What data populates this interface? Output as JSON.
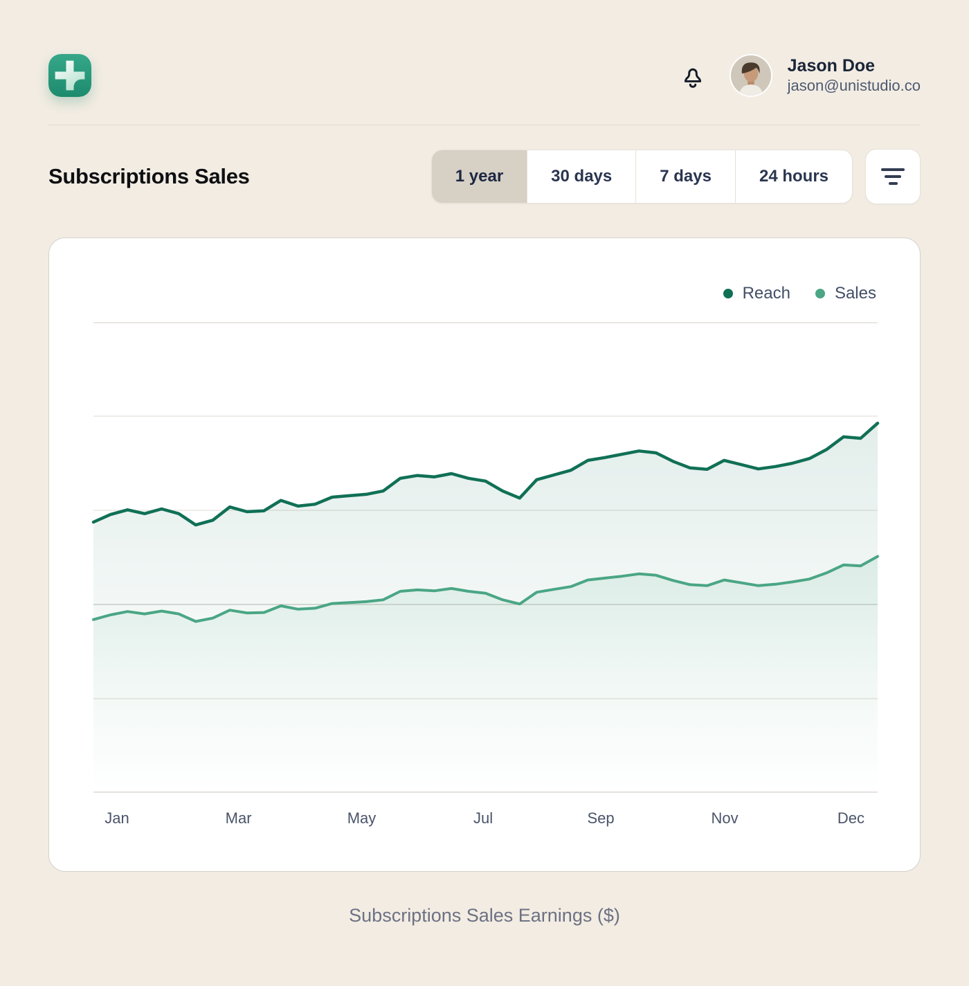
{
  "header": {
    "logo_icon": "plus-app-logo-icon",
    "logo_color": "#2a9b7d",
    "notifications_icon": "bell-icon",
    "user": {
      "name": "Jason Doe",
      "email": "jason@unistudio.co"
    }
  },
  "page": {
    "title": "Subscriptions Sales",
    "caption": "Subscriptions Sales Earnings ($)"
  },
  "range_tabs": [
    {
      "label": "1 year",
      "selected": true
    },
    {
      "label": "30 days",
      "selected": false
    },
    {
      "label": "7 days",
      "selected": false
    },
    {
      "label": "24 hours",
      "selected": false
    }
  ],
  "filter_button": {
    "icon": "filter-lines-icon"
  },
  "chart_data": {
    "type": "area",
    "title": "Subscriptions Sales",
    "xlabel": "",
    "ylabel": "Subscriptions Sales Earnings ($)",
    "ylim": [
      0,
      100
    ],
    "gridline_values": [
      100,
      80,
      60,
      40,
      20,
      0
    ],
    "grid": true,
    "legend_position": "top-right",
    "x_ticks": [
      {
        "label": "Jan",
        "pct": 3.0
      },
      {
        "label": "Mar",
        "pct": 18.5
      },
      {
        "label": "May",
        "pct": 34.2
      },
      {
        "label": "Jul",
        "pct": 49.7
      },
      {
        "label": "Sep",
        "pct": 64.7
      },
      {
        "label": "Nov",
        "pct": 80.5
      },
      {
        "label": "Dec",
        "pct": 96.6
      }
    ],
    "series": [
      {
        "name": "Reach",
        "color": "#107055",
        "values": [
          57.5,
          59.1,
          60.1,
          59.3,
          60.3,
          59.3,
          56.9,
          57.9,
          60.7,
          59.7,
          59.9,
          62.1,
          60.9,
          61.3,
          62.8,
          63.1,
          63.4,
          64.1,
          66.8,
          67.4,
          67.1,
          67.8,
          66.8,
          66.2,
          64.1,
          62.6,
          66.5,
          67.5,
          68.5,
          70.6,
          71.2,
          71.9,
          72.6,
          72.2,
          70.4,
          69.0,
          68.7,
          70.6,
          69.7,
          68.8,
          69.3,
          70.0,
          71.0,
          72.9,
          75.6,
          75.3,
          78.5
        ]
      },
      {
        "name": "Sales",
        "color": "#4aa685",
        "values": [
          36.8,
          37.8,
          38.5,
          38.0,
          38.6,
          38.0,
          36.4,
          37.1,
          38.8,
          38.2,
          38.3,
          39.7,
          39.0,
          39.2,
          40.2,
          40.4,
          40.6,
          41.0,
          42.8,
          43.1,
          42.9,
          43.4,
          42.8,
          42.4,
          41.0,
          40.1,
          42.6,
          43.2,
          43.8,
          45.2,
          45.6,
          46.0,
          46.5,
          46.2,
          45.1,
          44.2,
          44.0,
          45.2,
          44.6,
          44.0,
          44.3,
          44.8,
          45.4,
          46.7,
          48.4,
          48.2,
          50.2
        ]
      }
    ]
  }
}
